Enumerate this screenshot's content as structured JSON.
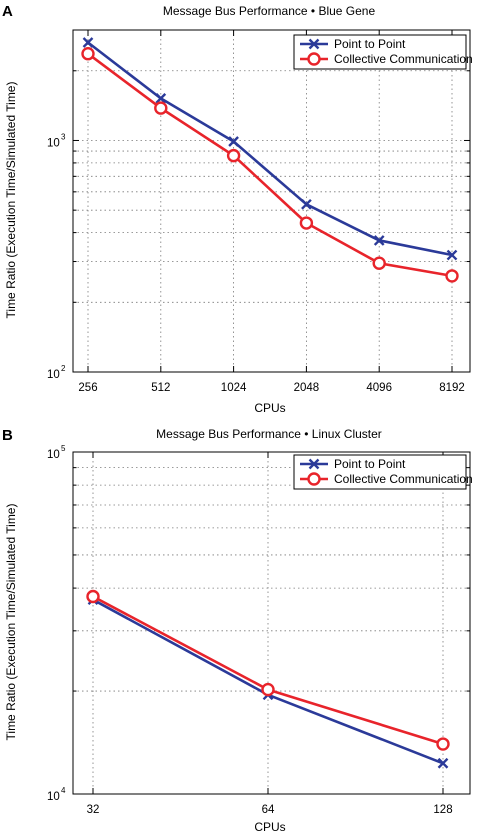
{
  "chart_data": [
    {
      "panel": "A",
      "type": "line",
      "title": "Message Bus Performance • Blue Gene",
      "xlabel": "CPUs",
      "ylabel": "Time Ratio (Execution Time/Simulated Time)",
      "categories": [
        "256",
        "512",
        "1024",
        "2048",
        "4096",
        "8192"
      ],
      "yscale": "log",
      "ylim": [
        100,
        3000
      ],
      "y_major_ticks": [
        100,
        1000
      ],
      "y_tick_labels": [
        {
          "base": "10",
          "exp": "2"
        },
        {
          "base": "10",
          "exp": "3"
        }
      ],
      "grid": true,
      "legend": "top-right",
      "series": [
        {
          "name": "Point to Point",
          "color": "#2b3a99",
          "marker": "x",
          "values": [
            2650,
            1520,
            990,
            530,
            370,
            320
          ]
        },
        {
          "name": "Collective Communication",
          "color": "#e8242b",
          "marker": "o",
          "values": [
            2370,
            1380,
            860,
            440,
            295,
            260
          ]
        }
      ]
    },
    {
      "panel": "B",
      "type": "line",
      "title": "Message Bus Performance • Linux Cluster",
      "xlabel": "CPUs",
      "ylabel": "Time Ratio (Execution Time/Simulated Time)",
      "categories": [
        "32",
        "64",
        "128"
      ],
      "yscale": "log",
      "ylim": [
        10000,
        100000
      ],
      "y_major_ticks": [
        10000,
        100000
      ],
      "y_tick_labels": [
        {
          "base": "10",
          "exp": "4"
        },
        {
          "base": "10",
          "exp": "5"
        }
      ],
      "grid": true,
      "legend": "top-right",
      "series": [
        {
          "name": "Point to Point",
          "color": "#2b3a99",
          "marker": "x",
          "values": [
            37000,
            19500,
            12300
          ]
        },
        {
          "name": "Collective Communication",
          "color": "#e8242b",
          "marker": "o",
          "values": [
            37800,
            20200,
            14000
          ]
        }
      ]
    }
  ]
}
